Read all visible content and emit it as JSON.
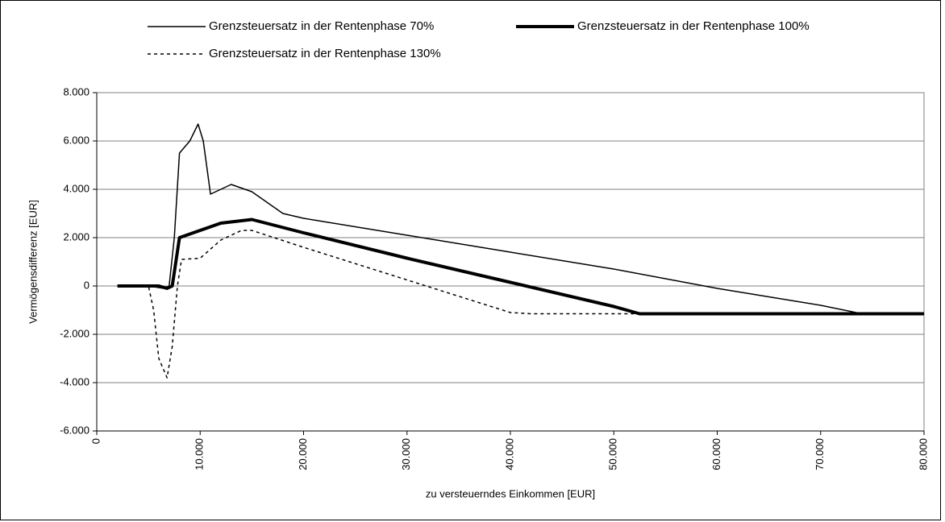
{
  "chart_data": {
    "type": "line",
    "xlabel": "zu versteuerndes Einkommen [EUR]",
    "ylabel": "Vermögensdifferenz [EUR]",
    "xlim": [
      0,
      80000
    ],
    "ylim": [
      -6000,
      8000
    ],
    "xticks": [
      0,
      {
        "value": 10000,
        "label": "10.000"
      },
      {
        "value": 20000,
        "label": "20.000"
      },
      {
        "value": 30000,
        "label": "30.000"
      },
      {
        "value": 40000,
        "label": "40.000"
      },
      {
        "value": 50000,
        "label": "50.000"
      },
      {
        "value": 60000,
        "label": "60.000"
      },
      {
        "value": 70000,
        "label": "70.000"
      },
      {
        "value": 80000,
        "label": "80.000"
      }
    ],
    "yticks": [
      {
        "value": -6000,
        "label": "-6.000"
      },
      {
        "value": -4000,
        "label": "-4.000"
      },
      {
        "value": -2000,
        "label": "-2.000"
      },
      0,
      {
        "value": 2000,
        "label": "2.000"
      },
      {
        "value": 4000,
        "label": "4.000"
      },
      {
        "value": 6000,
        "label": "6.000"
      },
      {
        "value": 8000,
        "label": "8.000"
      }
    ],
    "grid": true,
    "series": [
      {
        "name": "Grenzsteuersatz in der Rentenphase 70%",
        "color": "#000000",
        "stroke_width": 1.5,
        "dash": "solid",
        "x": [
          2000,
          5000,
          6500,
          7000,
          7500,
          8000,
          9000,
          9800,
          10300,
          11000,
          12000,
          13000,
          15000,
          18000,
          20000,
          30000,
          40000,
          50000,
          60000,
          70000,
          74000,
          80000
        ],
        "values": [
          0,
          0,
          -100,
          0,
          2000,
          5500,
          6000,
          6700,
          6000,
          3800,
          4000,
          4200,
          3900,
          3000,
          2800,
          2100,
          1400,
          700,
          -100,
          -800,
          -1150,
          -1150
        ]
      },
      {
        "name": "Grenzsteuersatz in der Rentenphase 100%",
        "color": "#000000",
        "stroke_width": 4,
        "dash": "solid",
        "x": [
          2000,
          6000,
          6800,
          7300,
          8000,
          9000,
          12000,
          15000,
          20000,
          30000,
          40000,
          50000,
          52500,
          80000
        ],
        "values": [
          0,
          0,
          -100,
          0,
          2000,
          2150,
          2600,
          2750,
          2200,
          1150,
          150,
          -850,
          -1150,
          -1150
        ]
      },
      {
        "name": "Grenzsteuersatz in der Rentenphase 130%",
        "color": "#000000",
        "stroke_width": 1.5,
        "dash": "dashed",
        "x": [
          2000,
          5000,
          5500,
          6000,
          6800,
          7300,
          7800,
          8200,
          10000,
          12000,
          14000,
          15000,
          20000,
          30000,
          40000,
          42000,
          52500
        ],
        "values": [
          0,
          0,
          -1000,
          -3000,
          -3800,
          -2500,
          0,
          1100,
          1150,
          1900,
          2300,
          2300,
          1600,
          250,
          -1100,
          -1150,
          -1150
        ]
      }
    ]
  }
}
